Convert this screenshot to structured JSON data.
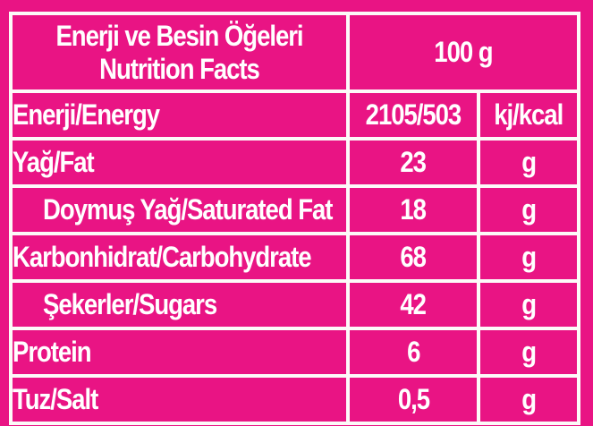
{
  "style": {
    "background_color": "#E91484",
    "grid_color": "#FCFAF8",
    "text_color": "#FFFFFF"
  },
  "nutrition_table": {
    "header": {
      "title_tr": "Enerji ve Besin Öğeleri",
      "title_en": "Nutrition Facts",
      "serving_size": "100 g"
    },
    "rows": [
      {
        "label": "Enerji/Energy",
        "value": "2105/503",
        "unit": "kj/kcal",
        "indent": false
      },
      {
        "label": "Yağ/Fat",
        "value": "23",
        "unit": "g",
        "indent": false
      },
      {
        "label": "Doymuş Yağ/Saturated Fat",
        "value": "18",
        "unit": "g",
        "indent": true
      },
      {
        "label": "Karbonhidrat/Carbohydrate",
        "value": "68",
        "unit": "g",
        "indent": false
      },
      {
        "label": "Şekerler/Sugars",
        "value": "42",
        "unit": "g",
        "indent": true
      },
      {
        "label": "Protein",
        "value": "6",
        "unit": "g",
        "indent": false
      },
      {
        "label": "Tuz/Salt",
        "value": "0,5",
        "unit": "g",
        "indent": false
      }
    ]
  }
}
